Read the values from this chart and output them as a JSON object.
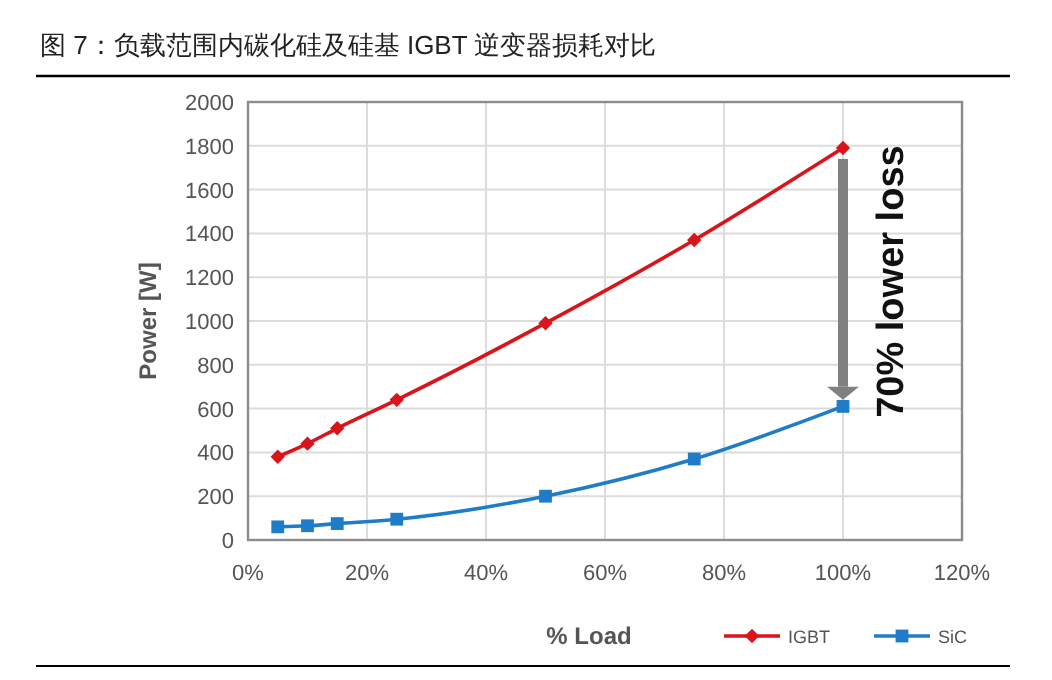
{
  "chart_data": {
    "type": "line",
    "title": "图 7：负载范围内碳化硅及硅基 IGBT 逆变器损耗对比",
    "xlabel": "% Load",
    "ylabel": "Power [W]",
    "x": [
      5,
      10,
      15,
      25,
      50,
      75,
      100
    ],
    "series": [
      {
        "name": "IGBT",
        "color": "#d9141b",
        "marker": "diamond",
        "values": [
          380,
          440,
          510,
          640,
          990,
          1370,
          1790
        ]
      },
      {
        "name": "SiC",
        "color": "#1f7cc8",
        "marker": "square",
        "values": [
          60,
          65,
          75,
          95,
          200,
          370,
          610
        ]
      }
    ],
    "xlim": [
      0,
      120
    ],
    "xticks": [
      {
        "value": 0,
        "label": "0%"
      },
      {
        "value": 20,
        "label": "20%"
      },
      {
        "value": 40,
        "label": "40%"
      },
      {
        "value": 60,
        "label": "60%"
      },
      {
        "value": 80,
        "label": "80%"
      },
      {
        "value": 100,
        "label": "100%"
      },
      {
        "value": 120,
        "label": "120%"
      }
    ],
    "ylim": [
      0,
      2000
    ],
    "yticks": [
      0,
      200,
      400,
      600,
      800,
      1000,
      1200,
      1400,
      1600,
      1800,
      2000
    ],
    "grid": true,
    "legend": "bottom right",
    "line_style": "solid",
    "annotations": [
      "70% lower loss"
    ]
  }
}
